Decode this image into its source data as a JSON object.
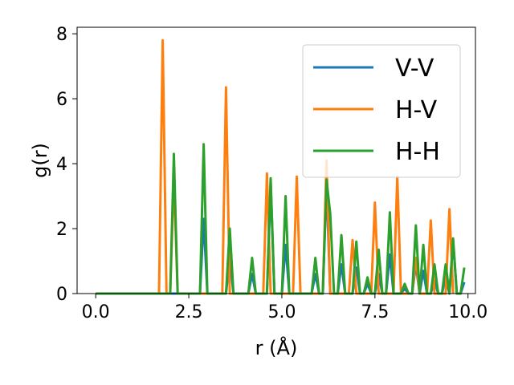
{
  "chart_data": {
    "type": "line",
    "title": "",
    "xlabel": "r (Å)",
    "ylabel": "g(r)",
    "xlim": [
      -0.5,
      10.2
    ],
    "ylim": [
      0,
      8.2
    ],
    "xticks": [
      0.0,
      2.5,
      5.0,
      7.5,
      10.0
    ],
    "xtick_labels": [
      "0.0",
      "2.5",
      "5.0",
      "7.5",
      "10.0"
    ],
    "yticks": [
      0,
      2,
      4,
      6,
      8
    ],
    "ytick_labels": [
      "0",
      "2",
      "4",
      "6",
      "8"
    ],
    "grid": false,
    "legend_position": "top-right",
    "series": [
      {
        "name": "V-V",
        "color": "#1f77b4",
        "points": [
          [
            0.0,
            0
          ],
          [
            2.8,
            0
          ],
          [
            2.9,
            2.3
          ],
          [
            3.0,
            0
          ],
          [
            3.5,
            0
          ],
          [
            3.6,
            1.1
          ],
          [
            3.7,
            0
          ],
          [
            4.1,
            0
          ],
          [
            4.2,
            0.6
          ],
          [
            4.3,
            0
          ],
          [
            4.6,
            0
          ],
          [
            4.7,
            3.4
          ],
          [
            4.8,
            0
          ],
          [
            5.0,
            0
          ],
          [
            5.1,
            1.5
          ],
          [
            5.2,
            0
          ],
          [
            5.8,
            0
          ],
          [
            5.9,
            0.6
          ],
          [
            6.0,
            0
          ],
          [
            6.1,
            0
          ],
          [
            6.2,
            3.4
          ],
          [
            6.3,
            0
          ],
          [
            6.5,
            0
          ],
          [
            6.6,
            0.9
          ],
          [
            6.7,
            0
          ],
          [
            6.9,
            0
          ],
          [
            7.0,
            0.8
          ],
          [
            7.1,
            0
          ],
          [
            7.2,
            0
          ],
          [
            7.3,
            0.3
          ],
          [
            7.4,
            0
          ],
          [
            7.5,
            0
          ],
          [
            7.6,
            0.6
          ],
          [
            7.7,
            0
          ],
          [
            7.8,
            0
          ],
          [
            7.9,
            1.2
          ],
          [
            8.0,
            0
          ],
          [
            8.2,
            0
          ],
          [
            8.3,
            0.15
          ],
          [
            8.4,
            0
          ],
          [
            8.5,
            0
          ],
          [
            8.6,
            0.9
          ],
          [
            8.7,
            0
          ],
          [
            8.8,
            0.7
          ],
          [
            8.9,
            0
          ],
          [
            9.0,
            0
          ],
          [
            9.1,
            0.4
          ],
          [
            9.2,
            0
          ],
          [
            9.3,
            0
          ],
          [
            9.4,
            0.5
          ],
          [
            9.5,
            0
          ],
          [
            9.6,
            1.6
          ],
          [
            9.7,
            0
          ],
          [
            9.8,
            0
          ],
          [
            9.9,
            0.35
          ]
        ]
      },
      {
        "name": "H-V",
        "color": "#ff7f0e",
        "points": [
          [
            0.0,
            0
          ],
          [
            1.7,
            0
          ],
          [
            1.8,
            7.8
          ],
          [
            1.9,
            0
          ],
          [
            2.0,
            0
          ],
          [
            2.1,
            3.6
          ],
          [
            2.2,
            0
          ],
          [
            3.4,
            0
          ],
          [
            3.5,
            6.35
          ],
          [
            3.6,
            0
          ],
          [
            4.5,
            0
          ],
          [
            4.6,
            3.7
          ],
          [
            4.7,
            0
          ],
          [
            5.3,
            0
          ],
          [
            5.4,
            3.6
          ],
          [
            5.5,
            0
          ],
          [
            6.1,
            0
          ],
          [
            6.2,
            4.1
          ],
          [
            6.3,
            0
          ],
          [
            6.8,
            0
          ],
          [
            6.9,
            1.65
          ],
          [
            7.0,
            0
          ],
          [
            7.4,
            0
          ],
          [
            7.5,
            2.8
          ],
          [
            7.6,
            0
          ],
          [
            8.0,
            0
          ],
          [
            8.1,
            3.6
          ],
          [
            8.2,
            0
          ],
          [
            8.5,
            0
          ],
          [
            8.6,
            1.1
          ],
          [
            8.7,
            0
          ],
          [
            8.9,
            0
          ],
          [
            9.0,
            2.25
          ],
          [
            9.1,
            0
          ],
          [
            9.4,
            0
          ],
          [
            9.5,
            2.6
          ],
          [
            9.6,
            0
          ]
        ]
      },
      {
        "name": "H-H",
        "color": "#2ca02c",
        "points": [
          [
            0.0,
            0
          ],
          [
            2.0,
            0
          ],
          [
            2.1,
            4.3
          ],
          [
            2.2,
            0
          ],
          [
            2.8,
            0
          ],
          [
            2.9,
            4.6
          ],
          [
            3.0,
            0
          ],
          [
            3.5,
            0
          ],
          [
            3.6,
            2.0
          ],
          [
            3.7,
            0
          ],
          [
            4.1,
            0
          ],
          [
            4.2,
            1.1
          ],
          [
            4.3,
            0
          ],
          [
            4.6,
            0
          ],
          [
            4.7,
            3.55
          ],
          [
            4.8,
            0
          ],
          [
            5.0,
            0
          ],
          [
            5.1,
            3.0
          ],
          [
            5.2,
            0
          ],
          [
            5.8,
            0
          ],
          [
            5.9,
            1.1
          ],
          [
            6.0,
            0
          ],
          [
            6.1,
            0
          ],
          [
            6.2,
            3.5
          ],
          [
            6.3,
            2.45
          ],
          [
            6.4,
            0
          ],
          [
            6.5,
            0
          ],
          [
            6.6,
            1.8
          ],
          [
            6.7,
            0
          ],
          [
            6.9,
            0
          ],
          [
            7.0,
            1.6
          ],
          [
            7.1,
            0
          ],
          [
            7.2,
            0
          ],
          [
            7.3,
            0.5
          ],
          [
            7.4,
            0
          ],
          [
            7.5,
            0
          ],
          [
            7.6,
            1.35
          ],
          [
            7.7,
            0
          ],
          [
            7.8,
            0
          ],
          [
            7.9,
            2.5
          ],
          [
            8.0,
            0
          ],
          [
            8.2,
            0
          ],
          [
            8.3,
            0.3
          ],
          [
            8.4,
            0
          ],
          [
            8.5,
            0
          ],
          [
            8.6,
            2.1
          ],
          [
            8.7,
            0
          ],
          [
            8.8,
            1.5
          ],
          [
            8.9,
            0
          ],
          [
            9.0,
            0
          ],
          [
            9.1,
            0.9
          ],
          [
            9.2,
            0
          ],
          [
            9.3,
            0
          ],
          [
            9.4,
            0.9
          ],
          [
            9.5,
            0
          ],
          [
            9.6,
            1.7
          ],
          [
            9.7,
            0
          ],
          [
            9.8,
            0
          ],
          [
            9.9,
            0.8
          ]
        ]
      }
    ]
  }
}
